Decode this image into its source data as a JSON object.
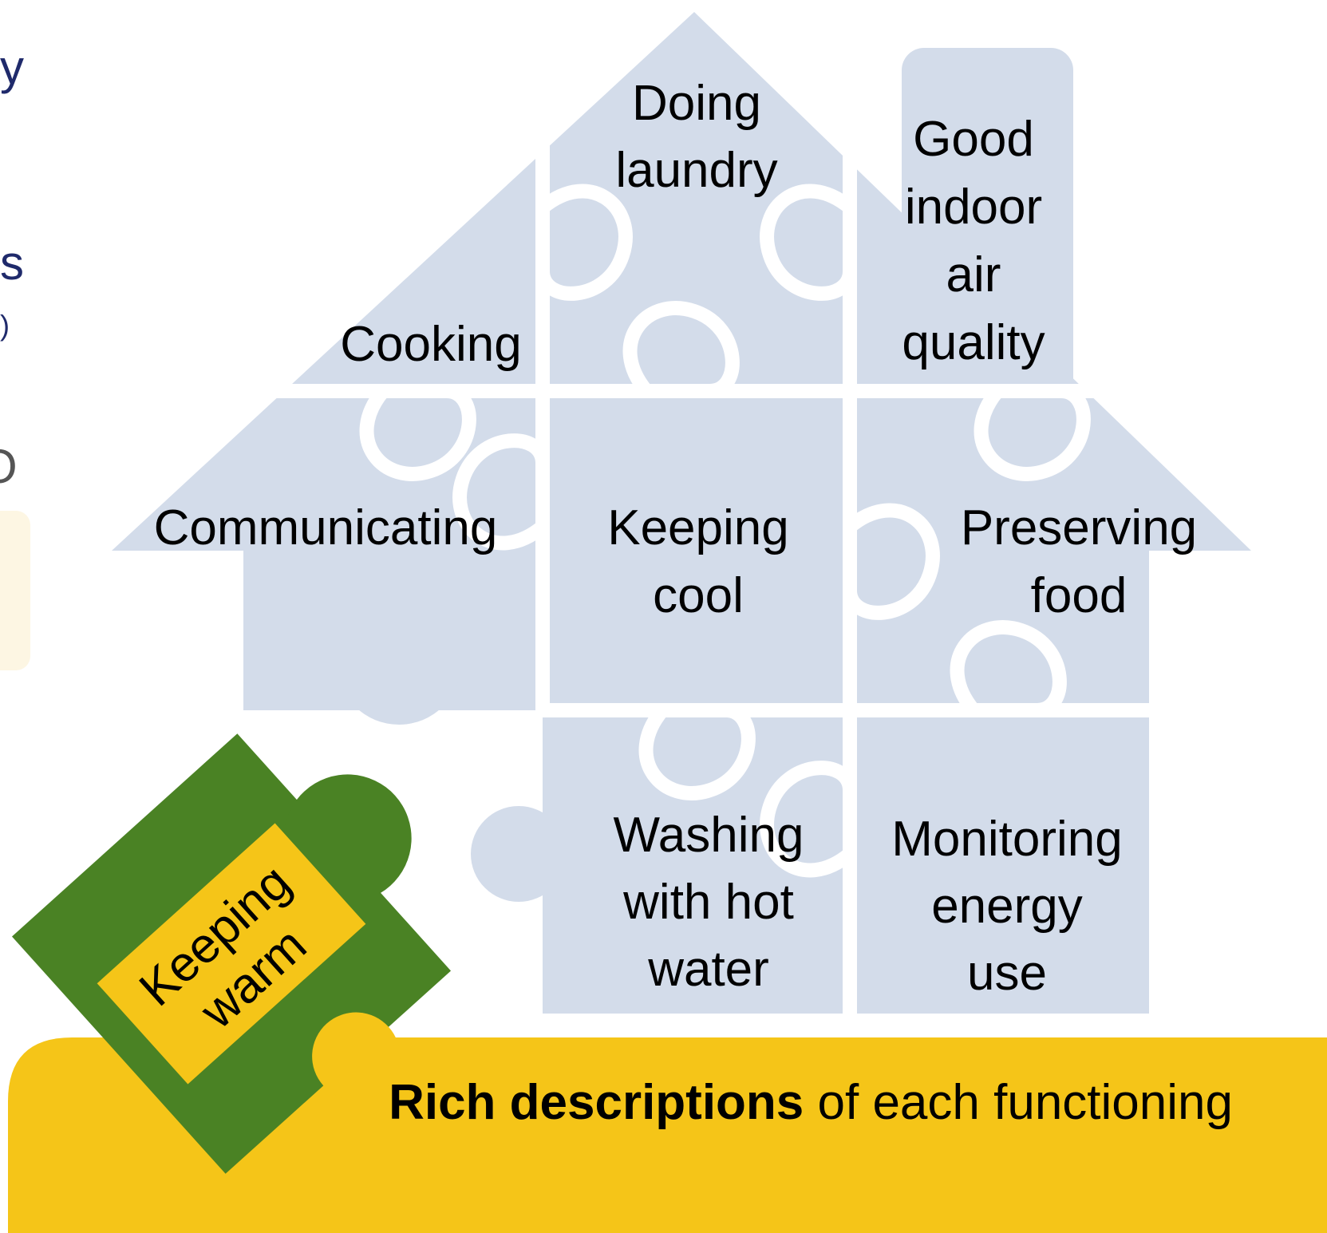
{
  "fragments": [
    "y",
    "s",
    ")",
    "O"
  ],
  "pieces": [
    {
      "lines": [
        "Doing",
        "laundry"
      ]
    },
    {
      "lines": [
        "Good",
        "indoor",
        "air",
        "quality"
      ]
    },
    {
      "lines": [
        "Cooking"
      ]
    },
    {
      "lines": [
        "Communicating"
      ]
    },
    {
      "lines": [
        "Keeping",
        "cool"
      ]
    },
    {
      "lines": [
        "Preserving",
        "food"
      ]
    },
    {
      "lines": [
        "Washing",
        "with hot",
        "water"
      ]
    },
    {
      "lines": [
        "Monitoring",
        "energy",
        "use"
      ]
    }
  ],
  "missing_piece": {
    "lines": [
      "Keeping",
      "warm"
    ]
  },
  "banner": {
    "bold": "Rich descriptions",
    "rest": " of each functioning"
  }
}
